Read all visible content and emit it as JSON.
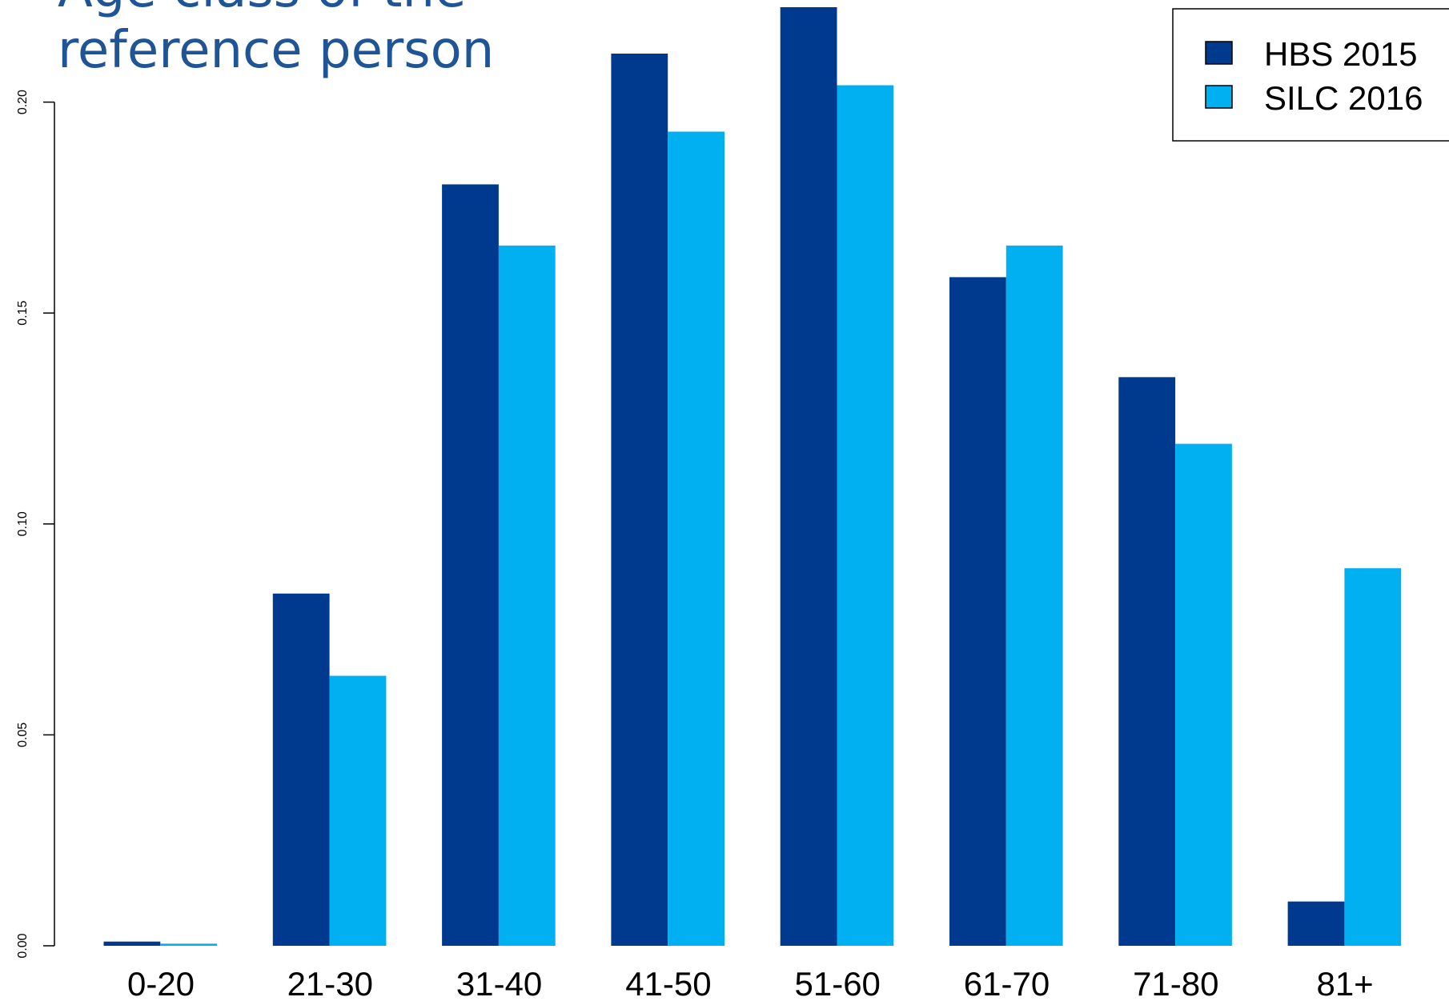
{
  "chart_data": {
    "type": "bar",
    "title_lines": [
      "Age class of the",
      "reference person"
    ],
    "categories": [
      "0-20",
      "21-30",
      "31-40",
      "41-50",
      "51-60",
      "61-70",
      "71-80",
      "81+"
    ],
    "series": [
      {
        "name": "HBS 2015",
        "color": "#003a8f",
        "values": [
          0.001,
          0.0835,
          0.1805,
          0.2115,
          0.2225,
          0.1585,
          0.1348,
          0.0105
        ]
      },
      {
        "name": "SILC 2016",
        "color": "#00b0f0",
        "values": [
          0.0005,
          0.064,
          0.166,
          0.193,
          0.204,
          0.166,
          0.119,
          0.0895
        ]
      }
    ],
    "y_ticks": [
      0.0,
      0.05,
      0.1,
      0.15,
      0.2
    ],
    "y_tick_labels": [
      "0.00",
      "0.05",
      "0.10",
      "0.15",
      "0.20"
    ],
    "ylim": [
      0,
      0.2225
    ],
    "grid": false,
    "legend_position": "top-right",
    "title_color": "#1f5597"
  }
}
